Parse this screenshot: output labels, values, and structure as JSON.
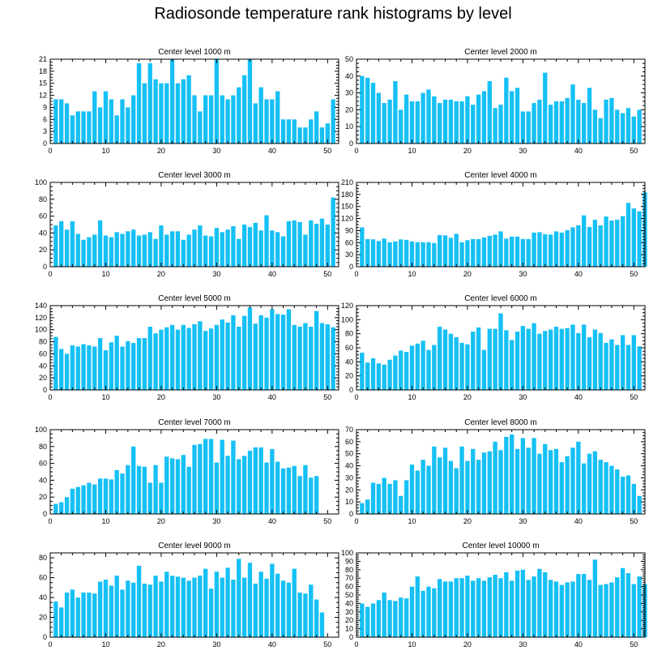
{
  "title": "Radiosonde temperature rank histograms by level",
  "colors": {
    "bar": "#16c0f5",
    "axis": "#000000"
  },
  "chart_data": [
    {
      "type": "bar",
      "title": "Center level 1000 m",
      "xlim": [
        0,
        52
      ],
      "xticks": [
        0,
        10,
        20,
        30,
        40,
        50
      ],
      "ylim": [
        0,
        21
      ],
      "yticks": [
        0,
        3,
        6,
        9,
        12,
        15,
        18,
        21
      ],
      "values": [
        11,
        11,
        10,
        7,
        8,
        8,
        8,
        13,
        9,
        13,
        11,
        7,
        11,
        9,
        12,
        20,
        15,
        20,
        16,
        15,
        15,
        21,
        15,
        16,
        17,
        12,
        8,
        12,
        12,
        21,
        12,
        11,
        12,
        14,
        17,
        21,
        10,
        14,
        11,
        11,
        13,
        6,
        6,
        6,
        4,
        4,
        6,
        8,
        4,
        5,
        11
      ]
    },
    {
      "type": "bar",
      "title": "Center level 2000 m",
      "xlim": [
        0,
        52
      ],
      "xticks": [
        0,
        10,
        20,
        30,
        40,
        50
      ],
      "ylim": [
        0,
        50
      ],
      "yticks": [
        0,
        10,
        20,
        30,
        40,
        50
      ],
      "values": [
        40,
        39,
        36,
        30,
        24,
        26,
        37,
        20,
        29,
        25,
        25,
        30,
        32,
        28,
        24,
        26,
        26,
        25,
        25,
        28,
        23,
        29,
        31,
        37,
        21,
        23,
        39,
        31,
        33,
        19,
        19,
        24,
        26,
        42,
        23,
        25,
        25,
        27,
        35,
        26,
        24,
        33,
        20,
        15,
        26,
        27,
        20,
        18,
        21,
        16,
        20
      ]
    },
    {
      "type": "bar",
      "title": "Center level 3000 m",
      "xlim": [
        0,
        52
      ],
      "xticks": [
        0,
        10,
        20,
        30,
        40,
        50
      ],
      "ylim": [
        0,
        100
      ],
      "yticks": [
        0,
        20,
        40,
        60,
        80,
        100
      ],
      "values": [
        49,
        54,
        44,
        54,
        39,
        32,
        35,
        38,
        55,
        37,
        35,
        41,
        39,
        42,
        44,
        37,
        38,
        41,
        33,
        49,
        38,
        42,
        42,
        32,
        38,
        44,
        49,
        37,
        36,
        46,
        41,
        44,
        48,
        33,
        50,
        47,
        52,
        43,
        61,
        43,
        41,
        36,
        54,
        55,
        53,
        38,
        55,
        51,
        57,
        50,
        82
      ]
    },
    {
      "type": "bar",
      "title": "Center level 4000 m",
      "xlim": [
        0,
        52
      ],
      "xticks": [
        0,
        10,
        20,
        30,
        40,
        50
      ],
      "ylim": [
        0,
        210
      ],
      "yticks": [
        0,
        30,
        60,
        90,
        120,
        150,
        180,
        210
      ],
      "values": [
        98,
        69,
        68,
        64,
        70,
        61,
        63,
        68,
        67,
        63,
        61,
        61,
        61,
        59,
        79,
        78,
        72,
        82,
        61,
        66,
        69,
        69,
        73,
        77,
        80,
        88,
        70,
        75,
        75,
        69,
        69,
        85,
        86,
        81,
        80,
        88,
        85,
        91,
        98,
        103,
        128,
        99,
        117,
        103,
        125,
        115,
        117,
        126,
        159,
        145,
        138,
        185
      ]
    },
    {
      "type": "bar",
      "title": "Center level 5000 m",
      "xlim": [
        0,
        52
      ],
      "xticks": [
        0,
        10,
        20,
        30,
        40,
        50
      ],
      "ylim": [
        0,
        140
      ],
      "yticks": [
        0,
        20,
        40,
        60,
        80,
        100,
        120,
        140
      ],
      "values": [
        88,
        68,
        60,
        74,
        72,
        76,
        74,
        72,
        86,
        66,
        79,
        90,
        72,
        81,
        78,
        86,
        86,
        105,
        94,
        100,
        104,
        108,
        100,
        108,
        103,
        109,
        114,
        98,
        102,
        108,
        117,
        112,
        124,
        105,
        123,
        137,
        110,
        124,
        120,
        134,
        126,
        125,
        134,
        108,
        105,
        111,
        105,
        131,
        111,
        109,
        104
      ]
    },
    {
      "type": "bar",
      "title": "Center level 6000 m",
      "xlim": [
        0,
        52
      ],
      "xticks": [
        0,
        10,
        20,
        30,
        40,
        50
      ],
      "ylim": [
        0,
        120
      ],
      "yticks": [
        0,
        20,
        40,
        60,
        80,
        100,
        120
      ],
      "values": [
        53,
        39,
        45,
        38,
        36,
        43,
        49,
        56,
        54,
        63,
        66,
        70,
        57,
        64,
        90,
        86,
        80,
        75,
        67,
        65,
        83,
        89,
        57,
        87,
        87,
        109,
        85,
        71,
        83,
        91,
        87,
        95,
        80,
        84,
        86,
        90,
        87,
        88,
        93,
        81,
        93,
        75,
        86,
        81,
        67,
        72,
        64,
        78,
        64,
        78,
        62
      ]
    },
    {
      "type": "bar",
      "title": "Center level 7000 m",
      "xlim": [
        0,
        52
      ],
      "xticks": [
        0,
        10,
        20,
        30,
        40,
        50
      ],
      "ylim": [
        0,
        100
      ],
      "yticks": [
        0,
        20,
        40,
        60,
        80,
        100
      ],
      "values": [
        12,
        14,
        20,
        30,
        32,
        34,
        37,
        35,
        42,
        42,
        41,
        52,
        48,
        58,
        80,
        57,
        56,
        37,
        58,
        37,
        68,
        66,
        65,
        70,
        56,
        82,
        83,
        89,
        89,
        61,
        88,
        69,
        87,
        65,
        69,
        75,
        79,
        79,
        61,
        77,
        62,
        54,
        55,
        57,
        45,
        58,
        43,
        45
      ]
    },
    {
      "type": "bar",
      "title": "Center level 8000 m",
      "xlim": [
        0,
        52
      ],
      "xticks": [
        0,
        10,
        20,
        30,
        40,
        50
      ],
      "ylim": [
        0,
        70
      ],
      "yticks": [
        0,
        10,
        20,
        30,
        40,
        50,
        60,
        70
      ],
      "values": [
        9,
        12,
        26,
        25,
        30,
        25,
        28,
        15,
        28,
        41,
        36,
        45,
        40,
        56,
        47,
        55,
        44,
        38,
        56,
        44,
        54,
        45,
        51,
        52,
        60,
        53,
        64,
        66,
        54,
        63,
        55,
        63,
        50,
        58,
        53,
        54,
        43,
        48,
        55,
        60,
        42,
        50,
        52,
        45,
        43,
        40,
        37,
        31,
        32,
        25,
        15
      ]
    },
    {
      "type": "bar",
      "title": "Center level 9000 m",
      "xlim": [
        0,
        52
      ],
      "xticks": [
        0,
        10,
        20,
        30,
        40,
        50
      ],
      "ylim": [
        0,
        85
      ],
      "yticks": [
        0,
        20,
        40,
        60,
        80
      ],
      "values": [
        36,
        30,
        45,
        48,
        40,
        45,
        45,
        44,
        56,
        58,
        52,
        62,
        48,
        57,
        55,
        72,
        54,
        53,
        62,
        56,
        66,
        62,
        61,
        60,
        57,
        60,
        62,
        69,
        49,
        66,
        60,
        70,
        58,
        79,
        60,
        75,
        54,
        66,
        59,
        74,
        64,
        57,
        55,
        69,
        45,
        44,
        53,
        38,
        25
      ]
    },
    {
      "type": "bar",
      "title": "Center level 10000 m",
      "xlim": [
        0,
        52
      ],
      "xticks": [
        0,
        10,
        20,
        30,
        40,
        50
      ],
      "ylim": [
        0,
        100
      ],
      "yticks": [
        0,
        10,
        20,
        30,
        40,
        50,
        60,
        70,
        80,
        90,
        100
      ],
      "values": [
        40,
        36,
        40,
        44,
        53,
        44,
        43,
        47,
        46,
        60,
        72,
        55,
        60,
        58,
        69,
        66,
        66,
        70,
        70,
        73,
        67,
        70,
        67,
        71,
        74,
        70,
        77,
        67,
        79,
        80,
        68,
        72,
        81,
        77,
        68,
        66,
        62,
        65,
        66,
        75,
        75,
        68,
        92,
        62,
        63,
        65,
        71,
        82,
        76,
        63,
        72,
        63
      ]
    }
  ]
}
